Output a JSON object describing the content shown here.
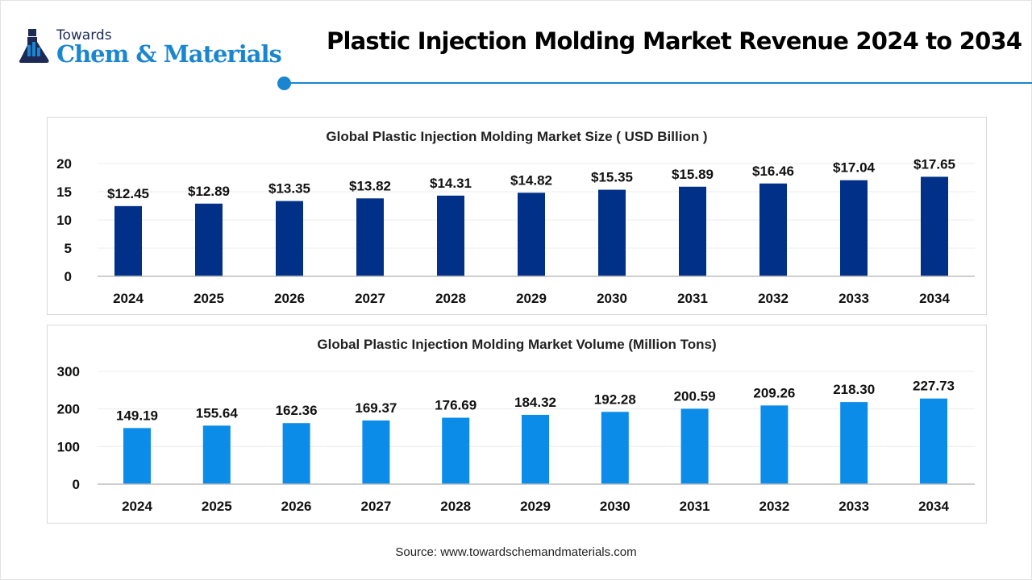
{
  "header": {
    "logo_top": "Towards",
    "logo_main": "Chem & Materials",
    "title": "Plastic Injection Molding Market Revenue 2024 to 2034"
  },
  "colors": {
    "accent": "#1a86cf",
    "size_bar": "#003087",
    "volume_bar": "#0a8ce8"
  },
  "chart_data": [
    {
      "type": "bar",
      "title": "Global Plastic Injection Molding Market Size ( USD Billion )",
      "categories": [
        "2024",
        "2025",
        "2026",
        "2027",
        "2028",
        "2029",
        "2030",
        "2031",
        "2032",
        "2033",
        "2034"
      ],
      "values": [
        12.45,
        12.89,
        13.35,
        13.82,
        14.31,
        14.82,
        15.35,
        15.89,
        16.46,
        17.04,
        17.65
      ],
      "data_labels": [
        "$12.45",
        "$12.89",
        "$13.35",
        "$13.82",
        "$14.31",
        "$14.82",
        "$15.35",
        "$15.89",
        "$16.46",
        "$17.04",
        "$17.65"
      ],
      "yticks": [
        "0",
        "5",
        "10",
        "15",
        "20"
      ],
      "ylim": [
        0,
        20
      ],
      "grid": true,
      "color": "#003087"
    },
    {
      "type": "bar",
      "title": "Global Plastic Injection Molding Market Volume (Million Tons)",
      "categories": [
        "2024",
        "2025",
        "2026",
        "2027",
        "2028",
        "2029",
        "2030",
        "2031",
        "2032",
        "2033",
        "2034"
      ],
      "values": [
        149.19,
        155.64,
        162.36,
        169.37,
        176.69,
        184.32,
        192.28,
        200.59,
        209.26,
        218.3,
        227.73
      ],
      "data_labels": [
        "149.19",
        "155.64",
        "162.36",
        "169.37",
        "176.69",
        "184.32",
        "192.28",
        "200.59",
        "209.26",
        "218.30",
        "227.73"
      ],
      "yticks": [
        "0",
        "100",
        "200",
        "300"
      ],
      "ylim": [
        0,
        300
      ],
      "grid": true,
      "color": "#0a8ce8"
    }
  ],
  "footer": {
    "source": "Source: www.towardschemandmaterials.com"
  }
}
